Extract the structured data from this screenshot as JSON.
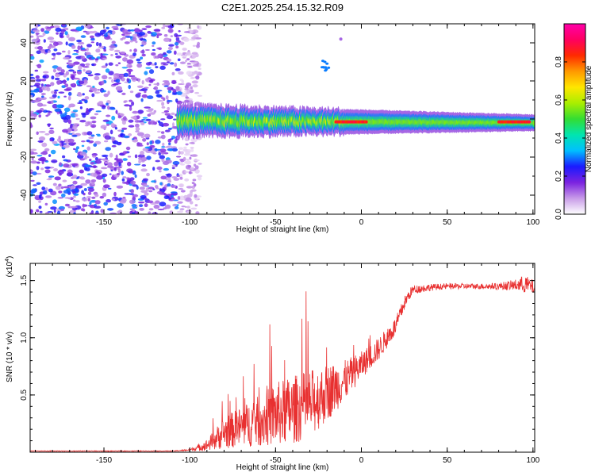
{
  "chart_data": [
    {
      "type": "heatmap",
      "title": "C2E1.2025.254.15.32.R09",
      "xlabel": "Height of straight line (km)",
      "ylabel": "Frequency (Hz)",
      "xlim": [
        -193,
        101
      ],
      "ylim": [
        -50,
        50
      ],
      "xticks": [
        -150,
        -100,
        -50,
        0,
        50,
        100
      ],
      "yticks": [
        -40,
        -20,
        0,
        20,
        40
      ],
      "colorbar": {
        "label": "Normalized spectral amplitude",
        "range": [
          0,
          1
        ],
        "ticks": [
          0.0,
          0.2,
          0.4,
          0.6,
          0.8
        ],
        "tick_labels": [
          "0.0",
          "0.2",
          "0.4",
          "0.6",
          "0.8"
        ],
        "colors": [
          "#ffffff",
          "#c89be8",
          "#7b22e0",
          "#1a1aff",
          "#00bfff",
          "#00e5b0",
          "#33dd33",
          "#aaee00",
          "#ffe600",
          "#ff9900",
          "#ff2a00",
          "#ff0060",
          "#ff00aa"
        ]
      },
      "regions": {
        "noise_band": {
          "x_range": [
            -193,
            -98
          ],
          "freq_range": [
            -50,
            50
          ],
          "amplitude": "0.1-0.3"
        },
        "signal_ridge": {
          "x_range": [
            -107,
            101
          ],
          "center_freq_hz": [
            -1,
            -2
          ],
          "half_width_hz": [
            4,
            2
          ]
        },
        "peak_segments": [
          {
            "x_range": [
              -15,
              3
            ],
            "freq_hz": -1.5,
            "amplitude": 0.9
          },
          {
            "x_range": [
              80,
              98
            ],
            "freq_hz": -1.5,
            "amplitude": 0.9
          }
        ],
        "artifacts": [
          {
            "x_range": [
              -24,
              -19
            ],
            "freq_hz": [
              25,
              32
            ]
          },
          {
            "x": -12,
            "freq_hz": 42
          }
        ]
      }
    },
    {
      "type": "line",
      "xlabel": "Height of straight line (km)",
      "ylabel": "SNR (10 * v/v)",
      "y_multiplier": "(x10",
      "y_multiplier_exp": "4",
      "y_multiplier_close": ")",
      "xlim": [
        -193,
        101
      ],
      "ylim": [
        0,
        1.65
      ],
      "xticks": [
        -150,
        -100,
        -50,
        0,
        50,
        100
      ],
      "yticks": [
        0.5,
        1.0,
        1.5
      ],
      "ytick_labels": [
        "0.5",
        "1.0",
        "1.5"
      ],
      "color": "#e83030",
      "series": [
        {
          "name": "SNR",
          "x": [
            -193,
            -150,
            -110,
            -100,
            -90,
            -80,
            -70,
            -60,
            -50,
            -40,
            -30,
            -20,
            -10,
            0,
            10,
            20,
            25,
            28,
            30,
            40,
            50,
            60,
            70,
            80,
            90,
            95,
            101
          ],
          "values": [
            0.01,
            0.01,
            0.01,
            0.02,
            0.06,
            0.17,
            0.22,
            0.27,
            0.33,
            0.37,
            0.42,
            0.52,
            0.62,
            0.76,
            0.9,
            1.1,
            1.3,
            1.38,
            1.42,
            1.44,
            1.45,
            1.45,
            1.45,
            1.45,
            1.46,
            1.47,
            1.44
          ],
          "spread": [
            0.003,
            0.003,
            0.003,
            0.008,
            0.05,
            0.14,
            0.18,
            0.22,
            0.28,
            0.3,
            0.3,
            0.25,
            0.18,
            0.12,
            0.1,
            0.08,
            0.06,
            0.05,
            0.04,
            0.03,
            0.025,
            0.025,
            0.025,
            0.03,
            0.05,
            0.08,
            0.06
          ]
        }
      ]
    }
  ]
}
